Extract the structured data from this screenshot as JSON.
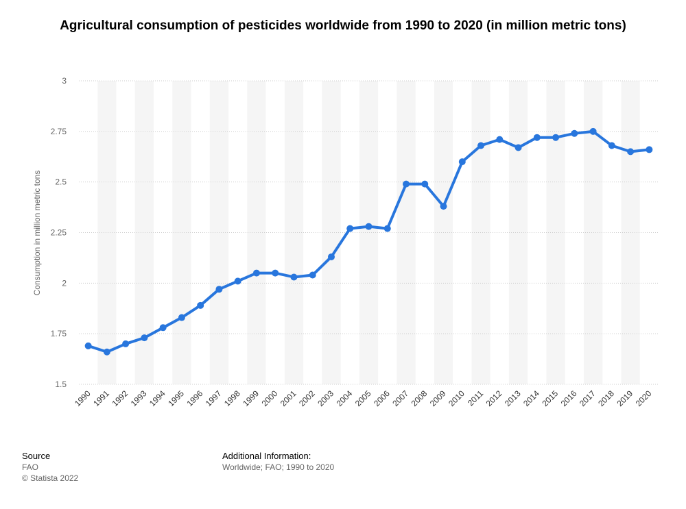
{
  "chart_data": {
    "type": "line",
    "title": "Agricultural consumption of pesticides worldwide from 1990 to 2020 (in million metric tons)",
    "xlabel": "",
    "ylabel": "Consumption in million metric tons",
    "ylim": [
      1.5,
      3
    ],
    "yticks": [
      3,
      2.75,
      2.5,
      2.25,
      2,
      1.75,
      1.5
    ],
    "yticklabels": [
      "3",
      "2.75",
      "2.5",
      "2.25",
      "2",
      "1.75",
      "1.5"
    ],
    "categories": [
      "1990",
      "1991",
      "1992",
      "1993",
      "1994",
      "1995",
      "1996",
      "1997",
      "1998",
      "1999",
      "2000",
      "2001",
      "2002",
      "2003",
      "2004",
      "2005",
      "2006",
      "2007",
      "2008",
      "2009",
      "2010",
      "2011",
      "2012",
      "2013",
      "2014",
      "2015",
      "2016",
      "2017",
      "2018",
      "2019",
      "2020"
    ],
    "series": [
      {
        "name": "Consumption",
        "color": "#2876dd",
        "values": [
          1.69,
          1.66,
          1.7,
          1.73,
          1.78,
          1.83,
          1.89,
          1.97,
          2.01,
          2.05,
          2.05,
          2.03,
          2.04,
          2.13,
          2.27,
          2.28,
          2.27,
          2.49,
          2.49,
          2.38,
          2.6,
          2.68,
          2.71,
          2.67,
          2.72,
          2.72,
          2.74,
          2.75,
          2.68,
          2.65,
          2.66
        ]
      }
    ],
    "grid": true,
    "legend": "none"
  },
  "footer": {
    "source_heading": "Source",
    "source_name": "FAO",
    "copyright": "© Statista 2022",
    "additional_heading": "Additional Information:",
    "additional_text": "Worldwide; FAO; 1990 to 2020"
  },
  "colors": {
    "line": "#2876dd",
    "band": "#f5f5f5",
    "grid": "#cccccc"
  }
}
